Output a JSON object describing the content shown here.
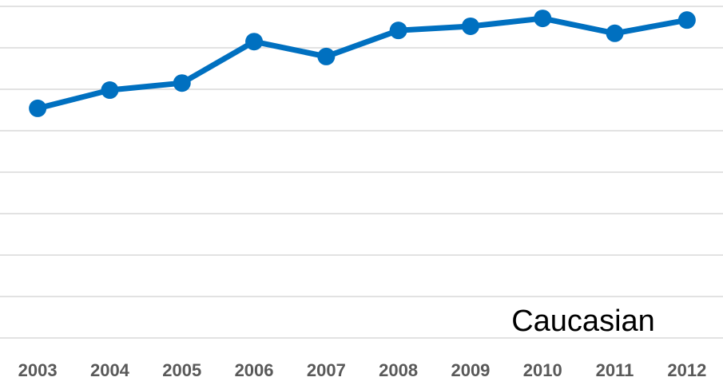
{
  "chart_data": {
    "type": "line",
    "annotation": "Caucasian",
    "categories": [
      "2003",
      "2004",
      "2005",
      "2006",
      "2007",
      "2008",
      "2009",
      "2010",
      "2011",
      "2012"
    ],
    "series": [
      {
        "name": "Caucasian",
        "color": "#0070c0",
        "values": [
          5.54,
          5.98,
          6.15,
          7.15,
          6.79,
          7.42,
          7.52,
          7.71,
          7.35,
          7.67
        ]
      }
    ],
    "ylim": [
      0,
      8
    ],
    "yticks": [
      0,
      1,
      2,
      3,
      4,
      5,
      6,
      7,
      8
    ],
    "grid": true
  }
}
